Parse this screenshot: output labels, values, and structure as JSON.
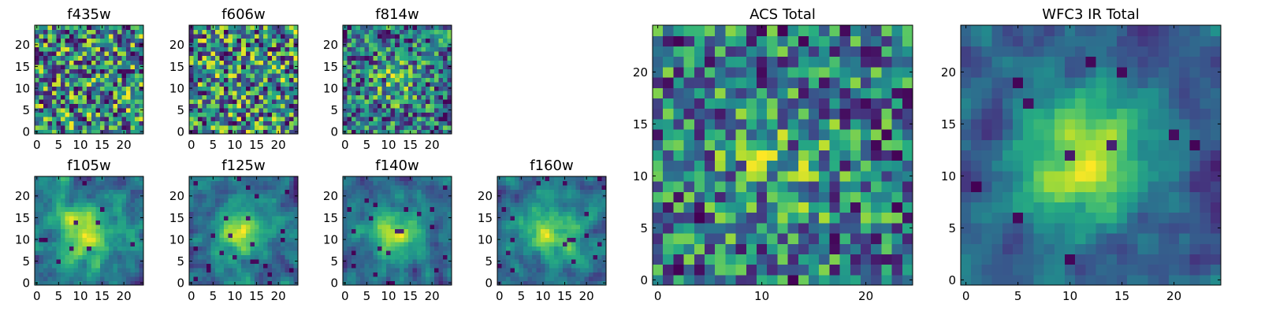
{
  "chart_data": [
    {
      "type": "heatmap",
      "title": "f435w",
      "xlabel": "",
      "ylabel": "",
      "grid_size": 25,
      "xlim": [
        -0.5,
        24.5
      ],
      "ylim": [
        -0.5,
        24.5
      ],
      "xticks": [
        0,
        5,
        10,
        15,
        20
      ],
      "yticks": [
        0,
        5,
        10,
        15,
        20
      ],
      "colormap": "viridis",
      "pattern": "uniform noise",
      "seed": 11,
      "values": []
    },
    {
      "type": "heatmap",
      "title": "f606w",
      "xlabel": "",
      "ylabel": "",
      "grid_size": 25,
      "xlim": [
        -0.5,
        24.5
      ],
      "ylim": [
        -0.5,
        24.5
      ],
      "xticks": [
        0,
        5,
        10,
        15,
        20
      ],
      "yticks": [
        0,
        5,
        10,
        15,
        20
      ],
      "colormap": "viridis",
      "pattern": "uniform noise",
      "seed": 23,
      "values": []
    },
    {
      "type": "heatmap",
      "title": "f814w",
      "xlabel": "",
      "ylabel": "",
      "grid_size": 25,
      "xlim": [
        -0.5,
        24.5
      ],
      "ylim": [
        -0.5,
        24.5
      ],
      "xticks": [
        0,
        5,
        10,
        15,
        20
      ],
      "yticks": [
        0,
        5,
        10,
        15,
        20
      ],
      "colormap": "viridis",
      "pattern": "noise with faint central source",
      "seed": 37,
      "values": []
    },
    {
      "type": "heatmap",
      "title": "f105w",
      "xlabel": "",
      "ylabel": "",
      "grid_size": 25,
      "xlim": [
        -0.5,
        24.5
      ],
      "ylim": [
        -0.5,
        24.5
      ],
      "xticks": [
        0,
        5,
        10,
        15,
        20
      ],
      "yticks": [
        0,
        5,
        10,
        15,
        20
      ],
      "colormap": "viridis",
      "pattern": "central source",
      "seed": 41,
      "values": []
    },
    {
      "type": "heatmap",
      "title": "f125w",
      "xlabel": "",
      "ylabel": "",
      "grid_size": 25,
      "xlim": [
        -0.5,
        24.5
      ],
      "ylim": [
        -0.5,
        24.5
      ],
      "xticks": [
        0,
        5,
        10,
        15,
        20
      ],
      "yticks": [
        0,
        5,
        10,
        15,
        20
      ],
      "colormap": "viridis",
      "pattern": "central source",
      "seed": 53,
      "values": []
    },
    {
      "type": "heatmap",
      "title": "f140w",
      "xlabel": "",
      "ylabel": "",
      "grid_size": 25,
      "xlim": [
        -0.5,
        24.5
      ],
      "ylim": [
        -0.5,
        24.5
      ],
      "xticks": [
        0,
        5,
        10,
        15,
        20
      ],
      "yticks": [
        0,
        5,
        10,
        15,
        20
      ],
      "colormap": "viridis",
      "pattern": "central source",
      "seed": 67,
      "values": []
    },
    {
      "type": "heatmap",
      "title": "f160w",
      "xlabel": "",
      "ylabel": "",
      "grid_size": 25,
      "xlim": [
        -0.5,
        24.5
      ],
      "ylim": [
        -0.5,
        24.5
      ],
      "xticks": [
        0,
        5,
        10,
        15,
        20
      ],
      "yticks": [
        0,
        5,
        10,
        15,
        20
      ],
      "colormap": "viridis",
      "pattern": "central source",
      "seed": 79,
      "values": []
    },
    {
      "type": "heatmap",
      "title": "ACS Total",
      "xlabel": "",
      "ylabel": "",
      "grid_size": 25,
      "xlim": [
        -0.5,
        24.5
      ],
      "ylim": [
        -0.5,
        24.5
      ],
      "xticks": [
        0,
        10,
        20
      ],
      "yticks": [
        0,
        5,
        10,
        15,
        20
      ],
      "colormap": "viridis",
      "pattern": "noise with faint central source",
      "seed": 97,
      "values": []
    },
    {
      "type": "heatmap",
      "title": "WFC3 IR Total",
      "xlabel": "",
      "ylabel": "",
      "grid_size": 25,
      "xlim": [
        -0.5,
        24.5
      ],
      "ylim": [
        -0.5,
        24.5
      ],
      "xticks": [
        0,
        5,
        10,
        15,
        20
      ],
      "yticks": [
        0,
        5,
        10,
        15,
        20
      ],
      "colormap": "viridis",
      "pattern": "bright central source",
      "seed": 113,
      "values": []
    }
  ]
}
